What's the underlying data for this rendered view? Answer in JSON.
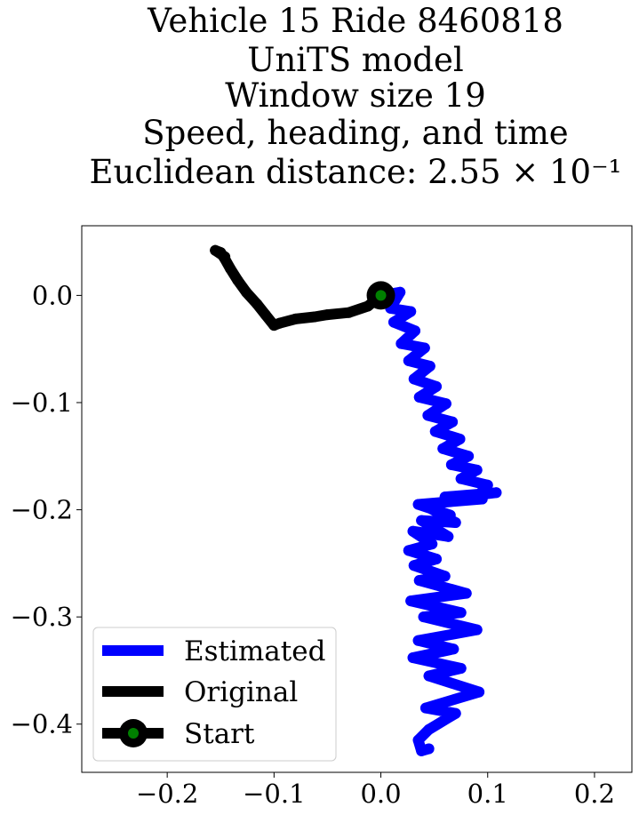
{
  "chart_data": {
    "type": "line",
    "title_lines": [
      "Vehicle 15 Ride 8460818",
      "UniTS model",
      "Window size 19",
      "Speed, heading, and time",
      "Euclidean distance: 2.55 × 10⁻¹"
    ],
    "xlabel": "",
    "ylabel": "",
    "xlim": [
      -0.28,
      0.235
    ],
    "ylim": [
      -0.445,
      0.065
    ],
    "x_ticks": [
      -0.2,
      -0.1,
      0.0,
      0.1,
      0.2
    ],
    "x_tick_labels": [
      "−0.2",
      "−0.1",
      "0.0",
      "0.1",
      "0.2"
    ],
    "y_ticks": [
      0.0,
      -0.1,
      -0.2,
      -0.3,
      -0.4
    ],
    "y_tick_labels": [
      "0.0",
      "−0.1",
      "−0.2",
      "−0.3",
      "−0.4"
    ],
    "grid": false,
    "legend_position": "lower-left",
    "series": [
      {
        "name": "Estimated",
        "color": "#0000ff",
        "points": [
          [
            0.0,
            0.0
          ],
          [
            0.018,
            0.003
          ],
          [
            0.009,
            -0.012
          ],
          [
            0.028,
            -0.015
          ],
          [
            0.012,
            -0.025
          ],
          [
            0.032,
            -0.033
          ],
          [
            0.019,
            -0.045
          ],
          [
            0.041,
            -0.049
          ],
          [
            0.026,
            -0.061
          ],
          [
            0.046,
            -0.066
          ],
          [
            0.031,
            -0.078
          ],
          [
            0.052,
            -0.085
          ],
          [
            0.036,
            -0.095
          ],
          [
            0.061,
            -0.101
          ],
          [
            0.044,
            -0.112
          ],
          [
            0.067,
            -0.118
          ],
          [
            0.051,
            -0.127
          ],
          [
            0.074,
            -0.134
          ],
          [
            0.058,
            -0.143
          ],
          [
            0.082,
            -0.15
          ],
          [
            0.066,
            -0.158
          ],
          [
            0.09,
            -0.163
          ],
          [
            0.075,
            -0.171
          ],
          [
            0.1,
            -0.177
          ],
          [
            0.092,
            -0.186
          ],
          [
            0.108,
            -0.184
          ],
          [
            0.06,
            -0.188
          ],
          [
            0.095,
            -0.19
          ],
          [
            0.035,
            -0.195
          ],
          [
            0.065,
            -0.205
          ],
          [
            0.045,
            -0.198
          ],
          [
            0.07,
            -0.212
          ],
          [
            0.038,
            -0.21
          ],
          [
            0.063,
            -0.225
          ],
          [
            0.03,
            -0.22
          ],
          [
            0.048,
            -0.232
          ],
          [
            0.026,
            -0.238
          ],
          [
            0.052,
            -0.246
          ],
          [
            0.031,
            -0.252
          ],
          [
            0.06,
            -0.262
          ],
          [
            0.036,
            -0.266
          ],
          [
            0.08,
            -0.278
          ],
          [
            0.028,
            -0.285
          ],
          [
            0.075,
            -0.296
          ],
          [
            0.04,
            -0.3
          ],
          [
            0.09,
            -0.312
          ],
          [
            0.035,
            -0.322
          ],
          [
            0.068,
            -0.33
          ],
          [
            0.03,
            -0.338
          ],
          [
            0.075,
            -0.348
          ],
          [
            0.045,
            -0.355
          ],
          [
            0.092,
            -0.37
          ],
          [
            0.042,
            -0.385
          ],
          [
            0.07,
            -0.39
          ],
          [
            0.045,
            -0.405
          ],
          [
            0.035,
            -0.415
          ],
          [
            0.038,
            -0.425
          ],
          [
            0.045,
            -0.423
          ]
        ]
      },
      {
        "name": "Original",
        "color": "#000000",
        "points": [
          [
            0.0,
            0.0
          ],
          [
            -0.012,
            -0.01
          ],
          [
            -0.03,
            -0.016
          ],
          [
            -0.05,
            -0.018
          ],
          [
            -0.062,
            -0.02
          ],
          [
            -0.08,
            -0.022
          ],
          [
            -0.095,
            -0.026
          ],
          [
            -0.1,
            -0.028
          ],
          [
            -0.108,
            -0.018
          ],
          [
            -0.116,
            -0.008
          ],
          [
            -0.126,
            0.003
          ],
          [
            -0.134,
            0.014
          ],
          [
            -0.141,
            0.025
          ],
          [
            -0.146,
            0.034
          ],
          [
            -0.15,
            0.04
          ],
          [
            -0.155,
            0.042
          ],
          [
            -0.146,
            0.036
          ]
        ]
      }
    ],
    "start_marker": {
      "name": "Start",
      "x": 0.0,
      "y": 0.0,
      "edge_color": "#000000",
      "fill_color": "#008000"
    }
  }
}
